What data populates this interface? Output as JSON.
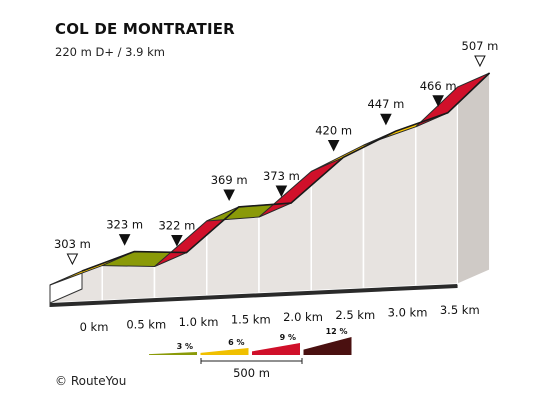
{
  "title": "COL DE MONTRATIER",
  "subtitle": "220 m D+ / 3.9 km",
  "credit": "© RouteYou",
  "chart_data": {
    "type": "area",
    "title": "COL DE MONTRATIER",
    "subtitle": "220 m D+ / 3.9 km",
    "segments": [
      {
        "from_km": 0.0,
        "to_km": 0.5,
        "start_m": 303,
        "end_m": 323,
        "color": "#ffcc00"
      },
      {
        "from_km": 0.5,
        "to_km": 1.0,
        "start_m": 323,
        "end_m": 322,
        "color": "#8a9a08"
      },
      {
        "from_km": 1.0,
        "to_km": 1.5,
        "start_m": 322,
        "end_m": 369,
        "color": "#d0102a"
      },
      {
        "from_km": 1.5,
        "to_km": 2.0,
        "start_m": 369,
        "end_m": 373,
        "color": "#8a9a08"
      },
      {
        "from_km": 2.0,
        "to_km": 2.5,
        "start_m": 373,
        "end_m": 420,
        "color": "#d0102a"
      },
      {
        "from_km": 2.5,
        "to_km": 3.0,
        "start_m": 420,
        "end_m": 447,
        "color": "#ffcc00"
      },
      {
        "from_km": 3.0,
        "to_km": 3.5,
        "start_m": 447,
        "end_m": 466,
        "color": "#ffcc00"
      },
      {
        "from_km": 3.5,
        "to_km": 3.9,
        "start_m": 466,
        "end_m": 507,
        "color": "#d0102a"
      }
    ],
    "elevation_labels": [
      "303 m",
      "323 m",
      "322 m",
      "369 m",
      "373 m",
      "420 m",
      "447 m",
      "466 m",
      "507 m"
    ],
    "km_labels": [
      "0 km",
      "0.5 km",
      "1.0 km",
      "1.5 km",
      "2.0 km",
      "2.5 km",
      "3.0 km",
      "3.5 km"
    ],
    "legend": [
      {
        "label": "3 %",
        "color": "#8a9a08"
      },
      {
        "label": "6 %",
        "color": "#f0c000"
      },
      {
        "label": "9 %",
        "color": "#d0102a"
      },
      {
        "label": "12 %",
        "color": "#4a1010"
      }
    ],
    "scale_label": "500 m"
  }
}
